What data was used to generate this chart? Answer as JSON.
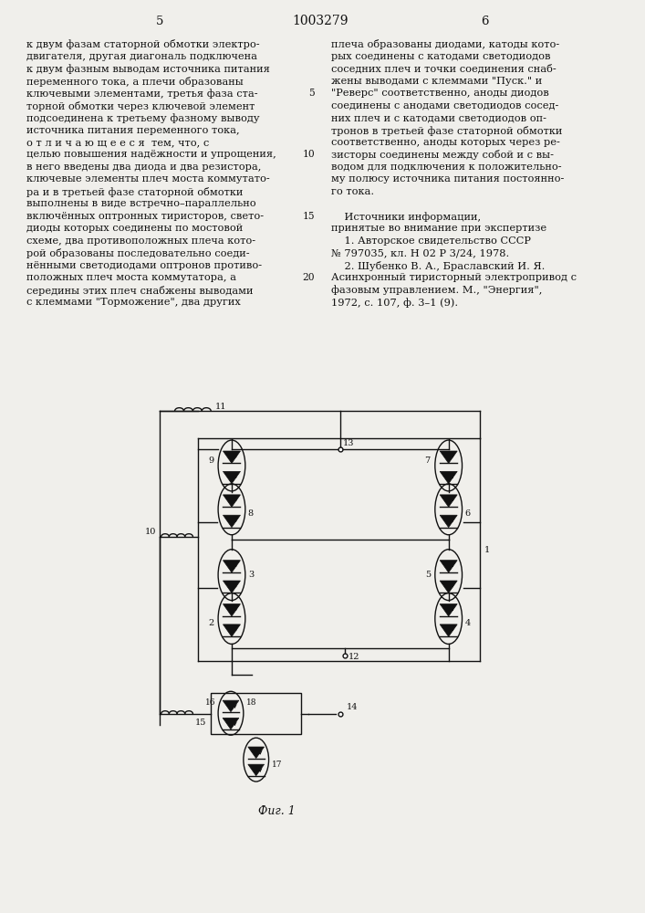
{
  "page_number_left": "5",
  "page_number_center": "1003279",
  "page_number_right": "6",
  "col1_text": [
    "к двум фазам статорной обмотки электро-",
    "двигателя, другая диагональ подключена",
    "к двум фазным выводам источника питания",
    "переменного тока, а плечи образованы",
    "ключевыми элементами, третья фаза ста-",
    "торной обмотки через ключевой элемент",
    "подсоединена к третьему фазному выводу",
    "источника питания переменного тока,",
    "о т л и ч а ю щ е е с я  тем, что, с",
    "целью повышения надёжности и упрощения,",
    "в него введены два диода и два резистора,",
    "ключевые элементы плеч моста коммутато-",
    "ра и в третьей фазе статорной обмотки",
    "выполнены в виде встречно–параллельно",
    "включённых оптронных тиристоров, свето-",
    "диоды которых соединены по мостовой",
    "схеме, два противоположных плеча кото-",
    "рой образованы последовательно соеди-",
    "нёнными светодиодами оптронов противо-",
    "положных плеч моста коммутатора, а",
    "середины этих плеч снабжены выводами",
    "с клеммами \"Торможение\", два других"
  ],
  "col2_text": [
    "плеча образованы диодами, катоды кото-",
    "рых соединены с катодами светодиодов",
    "соседних плеч и точки соединения снаб-",
    "жены выводами с клеммами \"Пуск.\" и",
    "\"Реверс\" соответственно, аноды диодов",
    "соединены с анодами светодиодов сосед-",
    "них плеч и с катодами светодиодов оп-",
    "тронов в третьей фазе статорной обмотки",
    "соответственно, аноды которых через ре-",
    "зисторы соединены между собой и с вы-",
    "водом для подключения к положительно-",
    "му полюсу источника питания постоянно-",
    "го тока.",
    "",
    "    Источники информации,",
    "принятые во внимание при экспертизе",
    "    1. Авторское свидетельство СССР",
    "№ 797035, кл. Н 02 Р 3/24, 1978.",
    "    2. Шубенко В. А., Браславский И. Я.",
    "Асинхронный тиристорный электропривод с",
    "фазовым управлением. М., \"Энергия\",",
    "1972, с. 107, ф. 3–1 (9)."
  ],
  "line_numbers_rows": [
    4,
    9,
    14,
    19
  ],
  "line_number_values": [
    5,
    10,
    15,
    20
  ],
  "fig_label": "Фиг. 1",
  "bg_color": "#f0efeb",
  "text_color": "#111111",
  "font_size_body": 8.2,
  "font_size_page": 9.5
}
